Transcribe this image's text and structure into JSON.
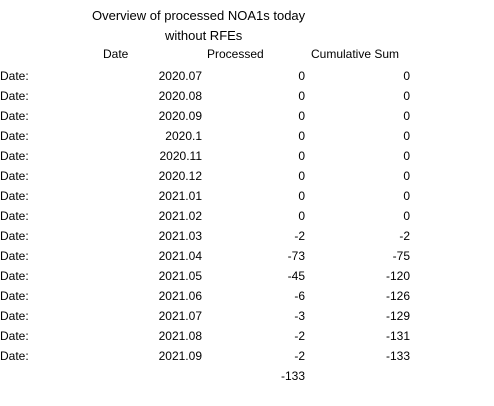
{
  "title_line1": "Overview of processed NOA1s today",
  "title_line2": "without RFEs",
  "headers": {
    "date": "Date",
    "processed": "Processed",
    "cumulative": "Cumulative Sum"
  },
  "rows": [
    {
      "label": "Date:",
      "date": "2020.07",
      "processed": "0",
      "cumulative": "0"
    },
    {
      "label": "Date:",
      "date": "2020.08",
      "processed": "0",
      "cumulative": "0"
    },
    {
      "label": "Date:",
      "date": "2020.09",
      "processed": "0",
      "cumulative": "0"
    },
    {
      "label": "Date:",
      "date": "2020.1",
      "processed": "0",
      "cumulative": "0"
    },
    {
      "label": "Date:",
      "date": "2020.11",
      "processed": "0",
      "cumulative": "0"
    },
    {
      "label": "Date:",
      "date": "2020.12",
      "processed": "0",
      "cumulative": "0"
    },
    {
      "label": "Date:",
      "date": "2021.01",
      "processed": "0",
      "cumulative": "0"
    },
    {
      "label": "Date:",
      "date": "2021.02",
      "processed": "0",
      "cumulative": "0"
    },
    {
      "label": "Date:",
      "date": "2021.03",
      "processed": "-2",
      "cumulative": "-2"
    },
    {
      "label": "Date:",
      "date": "2021.04",
      "processed": "-73",
      "cumulative": "-75"
    },
    {
      "label": "Date:",
      "date": "2021.05",
      "processed": "-45",
      "cumulative": "-120"
    },
    {
      "label": "Date:",
      "date": "2021.06",
      "processed": "-6",
      "cumulative": "-126"
    },
    {
      "label": "Date:",
      "date": "2021.07",
      "processed": "-3",
      "cumulative": "-129"
    },
    {
      "label": "Date:",
      "date": "2021.08",
      "processed": "-2",
      "cumulative": "-131"
    },
    {
      "label": "Date:",
      "date": "2021.09",
      "processed": "-2",
      "cumulative": "-133"
    }
  ],
  "total_processed": "-133"
}
